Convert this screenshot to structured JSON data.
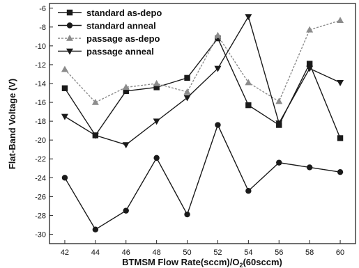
{
  "chart_data": {
    "type": "line",
    "xlabel": "BTMSM Flow Rate(sccm)/O",
    "xlabel_sub": "2",
    "xlabel_tail": "(60sccm)",
    "ylabel": "Flat-Band Voltage (V)",
    "x": [
      42,
      44,
      46,
      48,
      50,
      52,
      54,
      56,
      58,
      60
    ],
    "xlim": [
      41,
      61
    ],
    "ylim": [
      -31,
      -5.5
    ],
    "xticks": [
      42,
      44,
      46,
      48,
      50,
      52,
      54,
      56,
      58,
      60
    ],
    "yticks": [
      -6,
      -8,
      -10,
      -12,
      -14,
      -16,
      -18,
      -20,
      -22,
      -24,
      -26,
      -28,
      -30
    ],
    "legend_position": "top-left",
    "grid": false,
    "series": [
      {
        "name": "standard as-depo",
        "marker": "square",
        "color": "#1a1a1a",
        "dashed": false,
        "points": [
          [
            42,
            -14.5
          ],
          [
            44,
            -19.5
          ],
          [
            46,
            -14.8
          ],
          [
            48,
            -14.4
          ],
          [
            50,
            -13.4
          ],
          [
            52,
            -9.2
          ],
          [
            54,
            -16.3
          ],
          [
            56,
            -18.4
          ],
          [
            58,
            -11.9
          ],
          [
            60,
            -19.8
          ]
        ]
      },
      {
        "name": "standard anneal",
        "marker": "circle",
        "color": "#1a1a1a",
        "dashed": false,
        "points": [
          [
            42,
            -24.0
          ],
          [
            44,
            -29.5
          ],
          [
            46,
            -27.5
          ],
          [
            48,
            -21.9
          ],
          [
            50,
            -27.9
          ],
          [
            52,
            -18.4
          ],
          [
            54,
            -25.4
          ],
          [
            56,
            -22.4
          ],
          [
            58,
            -22.9
          ],
          [
            60,
            -23.4
          ]
        ]
      },
      {
        "name": "passage as-depo",
        "marker": "triangle-up",
        "color": "#8c8c8c",
        "dashed": true,
        "points": [
          [
            42,
            -12.5
          ],
          [
            44,
            -16.0
          ],
          [
            46,
            -14.4
          ],
          [
            48,
            -14.0
          ],
          [
            50,
            -14.9
          ],
          [
            52,
            -8.9
          ],
          [
            54,
            -13.9
          ],
          [
            56,
            -15.9
          ],
          [
            58,
            -8.3
          ],
          [
            60,
            -7.3
          ]
        ]
      },
      {
        "name": "passage anneal",
        "marker": "triangle-down",
        "color": "#1a1a1a",
        "dashed": false,
        "points": [
          [
            42,
            -17.5
          ],
          [
            44,
            -19.5
          ],
          [
            46,
            -20.5
          ],
          [
            48,
            -18.0
          ],
          [
            50,
            -15.5
          ],
          [
            52,
            -12.4
          ],
          [
            54,
            -6.9
          ],
          [
            56,
            -18.2
          ],
          [
            58,
            -12.4
          ],
          [
            60,
            -13.9
          ]
        ]
      }
    ]
  }
}
